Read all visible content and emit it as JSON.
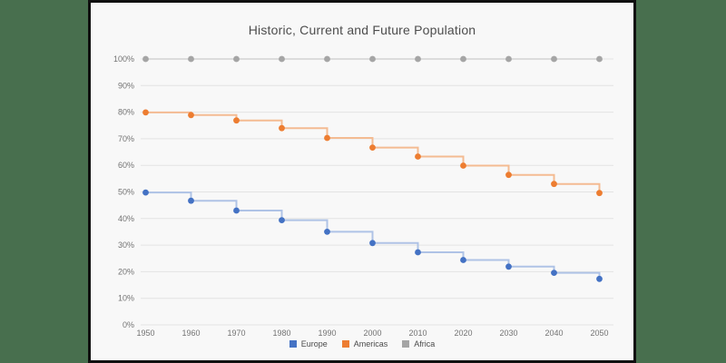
{
  "window": {
    "background_color": "#486F4E",
    "card_background": "#F8F8F8",
    "card_border_color": "#101010"
  },
  "chart_data": {
    "type": "line",
    "subtype": "step-after",
    "title": "Historic, Current and Future Population",
    "xlabel": "",
    "ylabel": "",
    "grid": true,
    "grid_color": "#E3E3E3",
    "tick_color": "#737373",
    "legend_position": "bottom",
    "ylim": [
      0,
      100
    ],
    "x": [
      1950,
      1960,
      1970,
      1980,
      1990,
      2000,
      2010,
      2020,
      2030,
      2040,
      2050
    ],
    "y_ticks": [
      {
        "value": 0,
        "label": "0%"
      },
      {
        "value": 10,
        "label": "10%"
      },
      {
        "value": 20,
        "label": "20%"
      },
      {
        "value": 30,
        "label": "30%"
      },
      {
        "value": 40,
        "label": "40%"
      },
      {
        "value": 50,
        "label": "50%"
      },
      {
        "value": 60,
        "label": "60%"
      },
      {
        "value": 70,
        "label": "70%"
      },
      {
        "value": 80,
        "label": "80%"
      },
      {
        "value": 90,
        "label": "90%"
      },
      {
        "value": 100,
        "label": "100%"
      }
    ],
    "series": [
      {
        "name": "Europe",
        "color": "#4472C4",
        "line_color": "#AFC3E6",
        "values": [
          49.8,
          46.7,
          43.0,
          39.4,
          35.0,
          30.8,
          27.3,
          24.4,
          21.9,
          19.6,
          17.3
        ]
      },
      {
        "name": "Americas",
        "color": "#ED7D31",
        "line_color": "#F4BB92",
        "values": [
          79.9,
          78.9,
          76.9,
          74.0,
          70.3,
          66.7,
          63.3,
          59.9,
          56.4,
          53.0,
          49.6
        ]
      },
      {
        "name": "Africa",
        "color": "#A5A5A5",
        "line_color": "#DCDCDC",
        "values": [
          100,
          100,
          100,
          100,
          100,
          100,
          100,
          100,
          100,
          100,
          100
        ]
      }
    ]
  }
}
